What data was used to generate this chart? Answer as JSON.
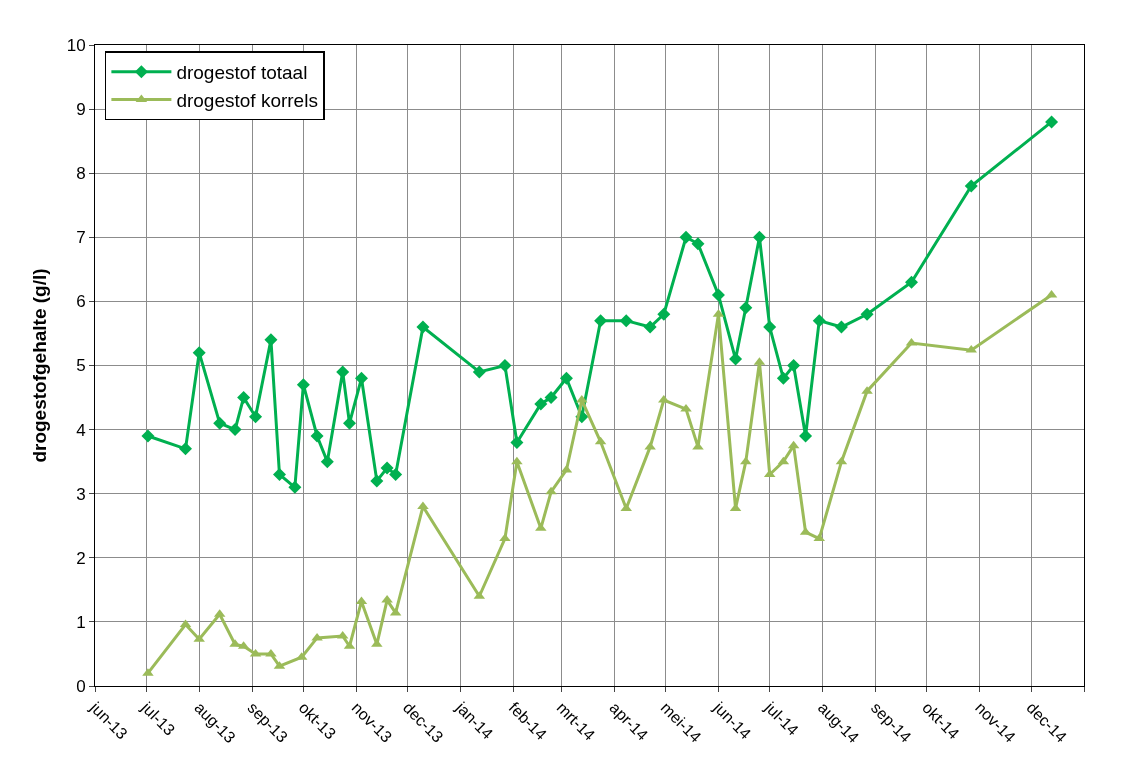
{
  "chart_data": {
    "type": "line",
    "ylabel": "drogestofgehalte (g/l)",
    "xlim": [
      "2013-06-01",
      "2015-01-01"
    ],
    "xticks": [
      {
        "value": "2013-06-01",
        "label": "jun-13"
      },
      {
        "value": "2013-07-01",
        "label": "jul-13"
      },
      {
        "value": "2013-08-01",
        "label": "aug-13"
      },
      {
        "value": "2013-09-01",
        "label": "sep-13"
      },
      {
        "value": "2013-10-01",
        "label": "okt-13"
      },
      {
        "value": "2013-11-01",
        "label": "nov-13"
      },
      {
        "value": "2013-12-01",
        "label": "dec-13"
      },
      {
        "value": "2014-01-01",
        "label": "jan-14"
      },
      {
        "value": "2014-02-01",
        "label": "feb-14"
      },
      {
        "value": "2014-03-01",
        "label": "mrt-14"
      },
      {
        "value": "2014-04-01",
        "label": "apr-14"
      },
      {
        "value": "2014-05-01",
        "label": "mei-14"
      },
      {
        "value": "2014-06-01",
        "label": "jun-14"
      },
      {
        "value": "2014-07-01",
        "label": "jul-14"
      },
      {
        "value": "2014-08-01",
        "label": "aug-14"
      },
      {
        "value": "2014-09-01",
        "label": "sep-14"
      },
      {
        "value": "2014-10-01",
        "label": "okt-14"
      },
      {
        "value": "2014-11-01",
        "label": "nov-14"
      },
      {
        "value": "2014-12-01",
        "label": "dec-14"
      },
      {
        "value": "2015-01-01",
        "label": null
      }
    ],
    "ylim": [
      0,
      10
    ],
    "yticks": [
      0,
      1,
      2,
      3,
      4,
      5,
      6,
      7,
      8,
      9,
      10
    ],
    "grid": true,
    "legend": "top left",
    "line_style": "solid",
    "series": [
      {
        "name": "drogestof totaal",
        "color": "#00b050",
        "marker": "diamond",
        "x": [
          "2013-07-02",
          "2013-07-24",
          "2013-08-01",
          "2013-08-13",
          "2013-08-22",
          "2013-08-27",
          "2013-09-03",
          "2013-09-12",
          "2013-09-17",
          "2013-09-26",
          "2013-10-01",
          "2013-10-09",
          "2013-10-15",
          "2013-10-24",
          "2013-10-28",
          "2013-11-04",
          "2013-11-13",
          "2013-11-19",
          "2013-11-24",
          "2013-12-10",
          "2014-01-12",
          "2014-01-27",
          "2014-02-03",
          "2014-02-17",
          "2014-02-23",
          "2014-03-04",
          "2014-03-13",
          "2014-03-24",
          "2014-04-08",
          "2014-04-22",
          "2014-04-30",
          "2014-05-13",
          "2014-05-20",
          "2014-06-01",
          "2014-06-11",
          "2014-06-17",
          "2014-06-25",
          "2014-07-01",
          "2014-07-09",
          "2014-07-15",
          "2014-07-22",
          "2014-07-30",
          "2014-08-12",
          "2014-08-27",
          "2014-09-22",
          "2014-10-27",
          "2014-12-13"
        ],
        "values": [
          3.9,
          3.7,
          5.2,
          4.1,
          4.0,
          4.5,
          4.2,
          5.4,
          3.3,
          3.1,
          4.7,
          3.9,
          3.5,
          4.9,
          4.1,
          4.8,
          3.2,
          3.4,
          3.3,
          5.6,
          4.9,
          5.0,
          3.8,
          4.4,
          4.5,
          4.8,
          4.2,
          5.7,
          5.7,
          5.6,
          5.8,
          7.0,
          6.9,
          6.1,
          5.1,
          5.9,
          7.0,
          5.6,
          4.8,
          5.0,
          3.9,
          5.7,
          5.6,
          5.8,
          6.3,
          7.8,
          8.8
        ]
      },
      {
        "name": "drogestof korrels",
        "color": "#9bbb59",
        "marker": "triangle",
        "x": [
          "2013-07-02",
          "2013-07-24",
          "2013-08-01",
          "2013-08-13",
          "2013-08-22",
          "2013-08-27",
          "2013-09-03",
          "2013-09-12",
          "2013-09-17",
          "2013-09-30",
          "2013-10-09",
          "2013-10-24",
          "2013-10-28",
          "2013-11-04",
          "2013-11-13",
          "2013-11-19",
          "2013-11-24",
          "2013-12-10",
          "2014-01-12",
          "2014-01-27",
          "2014-02-03",
          "2014-02-17",
          "2014-02-23",
          "2014-03-04",
          "2014-03-13",
          "2014-03-24",
          "2014-04-08",
          "2014-04-22",
          "2014-04-30",
          "2014-05-13",
          "2014-05-20",
          "2014-06-01",
          "2014-06-11",
          "2014-06-17",
          "2014-06-25",
          "2014-07-01",
          "2014-07-09",
          "2014-07-15",
          "2014-07-22",
          "2014-07-30",
          "2014-08-12",
          "2014-08-27",
          "2014-09-22",
          "2014-10-27",
          "2014-12-13"
        ],
        "values": [
          0.2,
          0.96,
          0.73,
          1.12,
          0.65,
          0.62,
          0.5,
          0.5,
          0.31,
          0.45,
          0.75,
          0.78,
          0.62,
          1.32,
          0.65,
          1.34,
          1.14,
          2.8,
          1.4,
          2.3,
          3.5,
          2.46,
          3.03,
          3.37,
          4.46,
          3.81,
          2.77,
          3.73,
          4.46,
          4.32,
          3.73,
          5.8,
          2.77,
          3.5,
          5.05,
          3.3,
          3.5,
          3.75,
          2.4,
          2.3,
          3.5,
          4.6,
          5.35,
          5.24,
          6.1
        ]
      }
    ]
  }
}
